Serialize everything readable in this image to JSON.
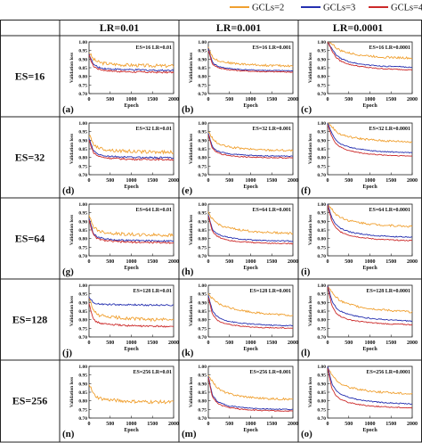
{
  "legend": [
    {
      "label": "GCLs=2",
      "color": "#f0a030"
    },
    {
      "label": "GCLs=3",
      "color": "#2530b0"
    },
    {
      "label": "GCLs=4",
      "color": "#cc2a2a"
    }
  ],
  "columns": [
    "LR=0.01",
    "LR=0.001",
    "LR=0.0001"
  ],
  "rows": [
    "ES=16",
    "ES=32",
    "ES=64",
    "ES=128",
    "ES=256"
  ],
  "chart_data": {
    "type": "line",
    "subplot_grid": {
      "rows": 5,
      "cols": 3
    },
    "xlabel": "Epoch",
    "ylabel": "Validation loss",
    "xlim": [
      0,
      2000
    ],
    "ylim": [
      0.7,
      1.0
    ],
    "xticks": [
      "0",
      "500",
      "1000",
      "1500",
      "2000"
    ],
    "yticks": [
      "1.00",
      "0.95",
      "0.90",
      "0.85",
      "0.80",
      "0.75",
      "0.70"
    ],
    "x": [
      0,
      100,
      200,
      300,
      500,
      750,
      1000,
      1250,
      1500,
      1750,
      2000
    ],
    "panels": [
      {
        "letter": "(a)",
        "tag": "ES=16  LR=0.01",
        "series": [
          {
            "name": "GCLs=2",
            "values": [
              0.94,
              0.9,
              0.885,
              0.878,
              0.872,
              0.868,
              0.865,
              0.863,
              0.862,
              0.861,
              0.86
            ]
          },
          {
            "name": "GCLs=3",
            "values": [
              0.93,
              0.87,
              0.855,
              0.848,
              0.843,
              0.84,
              0.838,
              0.837,
              0.836,
              0.835,
              0.835
            ]
          },
          {
            "name": "GCLs=4",
            "values": [
              0.92,
              0.86,
              0.845,
              0.838,
              0.832,
              0.828,
              0.826,
              0.825,
              0.824,
              0.823,
              0.823
            ]
          }
        ]
      },
      {
        "letter": "(b)",
        "tag": "ES=16  LR=0.001",
        "series": [
          {
            "name": "GCLs=2",
            "values": [
              0.97,
              0.91,
              0.895,
              0.888,
              0.878,
              0.872,
              0.868,
              0.865,
              0.863,
              0.862,
              0.86
            ]
          },
          {
            "name": "GCLs=3",
            "values": [
              0.96,
              0.88,
              0.862,
              0.853,
              0.845,
              0.84,
              0.837,
              0.835,
              0.834,
              0.833,
              0.832
            ]
          },
          {
            "name": "GCLs=4",
            "values": [
              0.95,
              0.87,
              0.855,
              0.846,
              0.838,
              0.833,
              0.83,
              0.828,
              0.827,
              0.826,
              0.825
            ]
          }
        ]
      },
      {
        "letter": "(c)",
        "tag": "ES=16  LR=0.0001",
        "series": [
          {
            "name": "GCLs=2",
            "values": [
              1.0,
              0.99,
              0.965,
              0.95,
              0.935,
              0.925,
              0.918,
              0.913,
              0.91,
              0.908,
              0.905
            ]
          },
          {
            "name": "GCLs=3",
            "values": [
              1.0,
              0.96,
              0.925,
              0.905,
              0.885,
              0.872,
              0.865,
              0.86,
              0.857,
              0.855,
              0.853
            ]
          },
          {
            "name": "GCLs=4",
            "values": [
              1.0,
              0.95,
              0.91,
              0.89,
              0.87,
              0.858,
              0.85,
              0.845,
              0.842,
              0.84,
              0.838
            ]
          }
        ]
      },
      {
        "letter": "(d)",
        "tag": "ES=32  LR=0.01",
        "series": [
          {
            "name": "GCLs=2",
            "values": [
              0.93,
              0.88,
              0.86,
              0.85,
              0.843,
              0.838,
              0.835,
              0.833,
              0.832,
              0.831,
              0.83
            ]
          },
          {
            "name": "GCLs=3",
            "values": [
              0.91,
              0.84,
              0.82,
              0.812,
              0.806,
              0.803,
              0.801,
              0.8,
              0.8,
              0.799,
              0.799
            ]
          },
          {
            "name": "GCLs=4",
            "values": [
              0.9,
              0.83,
              0.81,
              0.802,
              0.796,
              0.792,
              0.79,
              0.789,
              0.789,
              0.788,
              0.788
            ]
          }
        ]
      },
      {
        "letter": "(e)",
        "tag": "ES=32  LR=0.001",
        "series": [
          {
            "name": "GCLs=2",
            "values": [
              0.95,
              0.91,
              0.885,
              0.872,
              0.86,
              0.853,
              0.848,
              0.845,
              0.843,
              0.842,
              0.84
            ]
          },
          {
            "name": "GCLs=3",
            "values": [
              0.94,
              0.86,
              0.84,
              0.83,
              0.821,
              0.815,
              0.812,
              0.81,
              0.809,
              0.808,
              0.807
            ]
          },
          {
            "name": "GCLs=4",
            "values": [
              0.93,
              0.85,
              0.83,
              0.82,
              0.811,
              0.805,
              0.802,
              0.8,
              0.799,
              0.798,
              0.797
            ]
          }
        ]
      },
      {
        "letter": "(f)",
        "tag": "ES=32  LR=0.0001",
        "series": [
          {
            "name": "GCLs=2",
            "values": [
              1.0,
              0.98,
              0.95,
              0.935,
              0.92,
              0.91,
              0.903,
              0.898,
              0.895,
              0.893,
              0.89
            ]
          },
          {
            "name": "GCLs=3",
            "values": [
              1.0,
              0.94,
              0.9,
              0.88,
              0.86,
              0.848,
              0.84,
              0.835,
              0.832,
              0.83,
              0.828
            ]
          },
          {
            "name": "GCLs=4",
            "values": [
              0.99,
              0.92,
              0.88,
              0.86,
              0.84,
              0.828,
              0.82,
              0.815,
              0.812,
              0.81,
              0.808
            ]
          }
        ]
      },
      {
        "letter": "(g)",
        "tag": "ES=64  LR=0.01",
        "series": [
          {
            "name": "GCLs=2",
            "values": [
              0.93,
              0.87,
              0.85,
              0.84,
              0.832,
              0.827,
              0.824,
              0.822,
              0.821,
              0.82,
              0.82
            ]
          },
          {
            "name": "GCLs=3",
            "values": [
              0.92,
              0.83,
              0.81,
              0.802,
              0.795,
              0.791,
              0.789,
              0.788,
              0.787,
              0.787,
              0.786
            ]
          },
          {
            "name": "GCLs=4",
            "values": [
              0.91,
              0.82,
              0.8,
              0.792,
              0.785,
              0.781,
              0.779,
              0.778,
              0.777,
              0.777,
              0.776
            ]
          }
        ]
      },
      {
        "letter": "(h)",
        "tag": "ES=64  LR=0.001",
        "series": [
          {
            "name": "GCLs=2",
            "values": [
              0.95,
              0.91,
              0.89,
              0.875,
              0.86,
              0.85,
              0.843,
              0.838,
              0.835,
              0.833,
              0.83
            ]
          },
          {
            "name": "GCLs=3",
            "values": [
              0.94,
              0.85,
              0.83,
              0.818,
              0.805,
              0.797,
              0.792,
              0.789,
              0.787,
              0.786,
              0.785
            ]
          },
          {
            "name": "GCLs=4",
            "values": [
              0.93,
              0.84,
              0.815,
              0.803,
              0.79,
              0.782,
              0.778,
              0.775,
              0.773,
              0.772,
              0.771
            ]
          }
        ]
      },
      {
        "letter": "(i)",
        "tag": "ES=64  LR=0.0001",
        "series": [
          {
            "name": "GCLs=2",
            "values": [
              1.0,
              0.97,
              0.94,
              0.925,
              0.905,
              0.893,
              0.885,
              0.88,
              0.876,
              0.873,
              0.87
            ]
          },
          {
            "name": "GCLs=3",
            "values": [
              1.0,
              0.92,
              0.88,
              0.86,
              0.84,
              0.828,
              0.82,
              0.815,
              0.812,
              0.81,
              0.808
            ]
          },
          {
            "name": "GCLs=4",
            "values": [
              0.99,
              0.9,
              0.86,
              0.84,
              0.82,
              0.808,
              0.8,
              0.795,
              0.792,
              0.79,
              0.788
            ]
          }
        ]
      },
      {
        "letter": "(j)",
        "tag": "ES=128  LR=0.01",
        "series": [
          {
            "name": "GCLs=2",
            "values": [
              0.93,
              0.85,
              0.83,
              0.822,
              0.815,
              0.81,
              0.806,
              0.803,
              0.801,
              0.8,
              0.8
            ]
          },
          {
            "name": "GCLs=3",
            "values": [
              0.93,
              0.9,
              0.893,
              0.89,
              0.888,
              0.887,
              0.886,
              0.886,
              0.885,
              0.885,
              0.885
            ]
          },
          {
            "name": "GCLs=4",
            "values": [
              0.9,
              0.8,
              0.785,
              0.778,
              0.772,
              0.768,
              0.765,
              0.763,
              0.762,
              0.761,
              0.76
            ]
          }
        ]
      },
      {
        "letter": "(k)",
        "tag": "ES=128  LR=0.001",
        "series": [
          {
            "name": "GCLs=2",
            "values": [
              0.95,
              0.92,
              0.9,
              0.885,
              0.87,
              0.855,
              0.845,
              0.838,
              0.832,
              0.828,
              0.825
            ]
          },
          {
            "name": "GCLs=3",
            "values": [
              0.94,
              0.85,
              0.82,
              0.805,
              0.79,
              0.78,
              0.775,
              0.771,
              0.768,
              0.766,
              0.765
            ]
          },
          {
            "name": "GCLs=4",
            "values": [
              0.93,
              0.83,
              0.8,
              0.785,
              0.772,
              0.763,
              0.758,
              0.755,
              0.753,
              0.752,
              0.751
            ]
          }
        ]
      },
      {
        "letter": "(l)",
        "tag": "ES=128  LR=0.0001",
        "series": [
          {
            "name": "GCLs=2",
            "values": [
              1.0,
              0.96,
              0.93,
              0.91,
              0.89,
              0.875,
              0.865,
              0.858,
              0.853,
              0.849,
              0.845
            ]
          },
          {
            "name": "GCLs=3",
            "values": [
              1.0,
              0.91,
              0.87,
              0.85,
              0.83,
              0.817,
              0.808,
              0.802,
              0.798,
              0.795,
              0.792
            ]
          },
          {
            "name": "GCLs=4",
            "values": [
              0.99,
              0.88,
              0.84,
              0.82,
              0.8,
              0.79,
              0.783,
              0.778,
              0.775,
              0.773,
              0.771
            ]
          }
        ]
      },
      {
        "letter": "(n)",
        "tag": "ES=256  LR=0.01",
        "series": [
          {
            "name": "GCLs=2",
            "values": [
              0.9,
              0.84,
              0.82,
              0.812,
              0.805,
              0.8,
              0.797,
              0.795,
              0.794,
              0.793,
              0.792
            ]
          }
        ]
      },
      {
        "letter": "(m)",
        "tag": "ES=256  LR=0.001",
        "series": [
          {
            "name": "GCLs=2",
            "values": [
              0.95,
              0.91,
              0.88,
              0.86,
              0.84,
              0.828,
              0.82,
              0.815,
              0.812,
              0.81,
              0.808
            ]
          },
          {
            "name": "GCLs=3",
            "values": [
              0.94,
              0.83,
              0.8,
              0.785,
              0.77,
              0.762,
              0.757,
              0.754,
              0.752,
              0.751,
              0.75
            ]
          },
          {
            "name": "GCLs=4",
            "values": [
              0.93,
              0.82,
              0.79,
              0.775,
              0.76,
              0.752,
              0.747,
              0.744,
              0.742,
              0.741,
              0.74
            ]
          }
        ]
      },
      {
        "letter": "(o)",
        "tag": "ES=256  LR=0.0001",
        "series": [
          {
            "name": "GCLs=2",
            "values": [
              1.0,
              0.95,
              0.92,
              0.9,
              0.88,
              0.866,
              0.857,
              0.851,
              0.847,
              0.844,
              0.84
            ]
          },
          {
            "name": "GCLs=3",
            "values": [
              1.0,
              0.9,
              0.86,
              0.84,
              0.82,
              0.806,
              0.797,
              0.791,
              0.787,
              0.784,
              0.781
            ]
          },
          {
            "name": "GCLs=4",
            "values": [
              0.99,
              0.87,
              0.83,
              0.81,
              0.79,
              0.778,
              0.771,
              0.766,
              0.763,
              0.761,
              0.759
            ]
          }
        ]
      }
    ]
  }
}
